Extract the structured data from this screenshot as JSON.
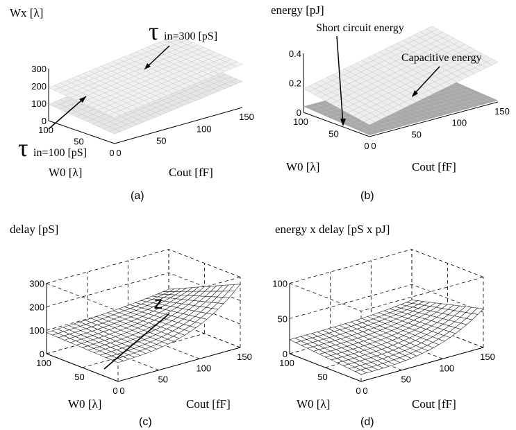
{
  "chart_data": [
    {
      "id": "a",
      "type": "surface3d",
      "panel_label": "(a)",
      "zlabel": "Wx [λ]",
      "xlabel": "Cout [fF]",
      "ylabel": "W0 [λ]",
      "x_ticks": [
        "0",
        "50",
        "100",
        "150"
      ],
      "y_ticks": [
        "0",
        "50",
        "100"
      ],
      "z_ticks": [
        "0",
        "100",
        "200",
        "300"
      ],
      "xlim": [
        0,
        150
      ],
      "ylim": [
        0,
        100
      ],
      "zlim": [
        0,
        300
      ],
      "grid": false,
      "surfaces": [
        {
          "name": "τin=100 [pS]",
          "corner_values": {
            "x0_y0": 55,
            "x150_y0": 150,
            "x0_y100": 95,
            "x150_y100": 185
          },
          "color": "#e6e6e6"
        },
        {
          "name": "τin=300 [pS]",
          "corner_values": {
            "x0_y0": 150,
            "x150_y0": 250,
            "x0_y100": 190,
            "x150_y100": 285
          },
          "color": "#f0f0f0"
        }
      ],
      "annotations": [
        {
          "tau": "τ",
          "sub": "in=300 [pS]"
        },
        {
          "tau": "τ",
          "sub": "in=100 [pS]"
        }
      ]
    },
    {
      "id": "b",
      "type": "surface3d",
      "panel_label": "(b)",
      "zlabel": "energy [pJ]",
      "xlabel": "Cout [fF]",
      "ylabel": "W0 [λ]",
      "x_ticks": [
        "0",
        "50",
        "100",
        "150"
      ],
      "y_ticks": [
        "0",
        "50",
        "100"
      ],
      "z_ticks": [
        "0",
        "0.2",
        "0.4"
      ],
      "xlim": [
        0,
        150
      ],
      "ylim": [
        0,
        100
      ],
      "zlim": [
        0,
        0.4
      ],
      "grid": false,
      "surfaces": [
        {
          "name": "Short circuit energy",
          "corner_values": {
            "x0_y0": 0.01,
            "x150_y0": 0.01,
            "x0_y100": 0.04,
            "x150_y100": 0.04
          },
          "color": "#a8a8a8"
        },
        {
          "name": "Capacitive energy",
          "corner_values": {
            "x0_y0": 0.08,
            "x150_y0": 0.27,
            "x0_y100": 0.16,
            "x150_y100": 0.35
          },
          "color": "#eeeeee"
        }
      ],
      "annotations": [
        {
          "text": "Short circuit energy"
        },
        {
          "text": "Capacitive energy"
        }
      ]
    },
    {
      "id": "c",
      "type": "surface3d",
      "panel_label": "(c)",
      "zlabel": "delay [pS]",
      "xlabel": "Cout [fF]",
      "ylabel": "W0 [λ]",
      "x_ticks": [
        "0",
        "50",
        "100",
        "150"
      ],
      "y_ticks": [
        "0",
        "50",
        "100"
      ],
      "z_ticks": [
        "0",
        "100",
        "200",
        "300"
      ],
      "xlim": [
        0,
        150
      ],
      "ylim": [
        0,
        100
      ],
      "zlim": [
        0,
        300
      ],
      "grid": true,
      "surfaces": [
        {
          "name": "delay",
          "corner_values": {
            "x0_y0": 80,
            "x150_y0": 250,
            "x0_y100": 90,
            "x150_y100": 110
          },
          "color": "#ffffff"
        }
      ],
      "annotations": [
        {
          "text": "Z"
        }
      ]
    },
    {
      "id": "d",
      "type": "surface3d",
      "panel_label": "(d)",
      "zlabel": "energy x delay [pS x pJ]",
      "xlabel": "Cout [fF]",
      "ylabel": "W0 [λ]",
      "x_ticks": [
        "0",
        "50",
        "100",
        "150"
      ],
      "y_ticks": [
        "0",
        "50",
        "100"
      ],
      "z_ticks": [
        "0",
        "50",
        "100"
      ],
      "xlim": [
        0,
        150
      ],
      "ylim": [
        0,
        100
      ],
      "zlim": [
        0,
        100
      ],
      "grid": true,
      "surfaces": [
        {
          "name": "energy x delay",
          "corner_values": {
            "x0_y0": 10,
            "x150_y0": 55,
            "x0_y100": 20,
            "x150_y100": 28
          },
          "color": "#ffffff"
        }
      ],
      "annotations": []
    }
  ]
}
